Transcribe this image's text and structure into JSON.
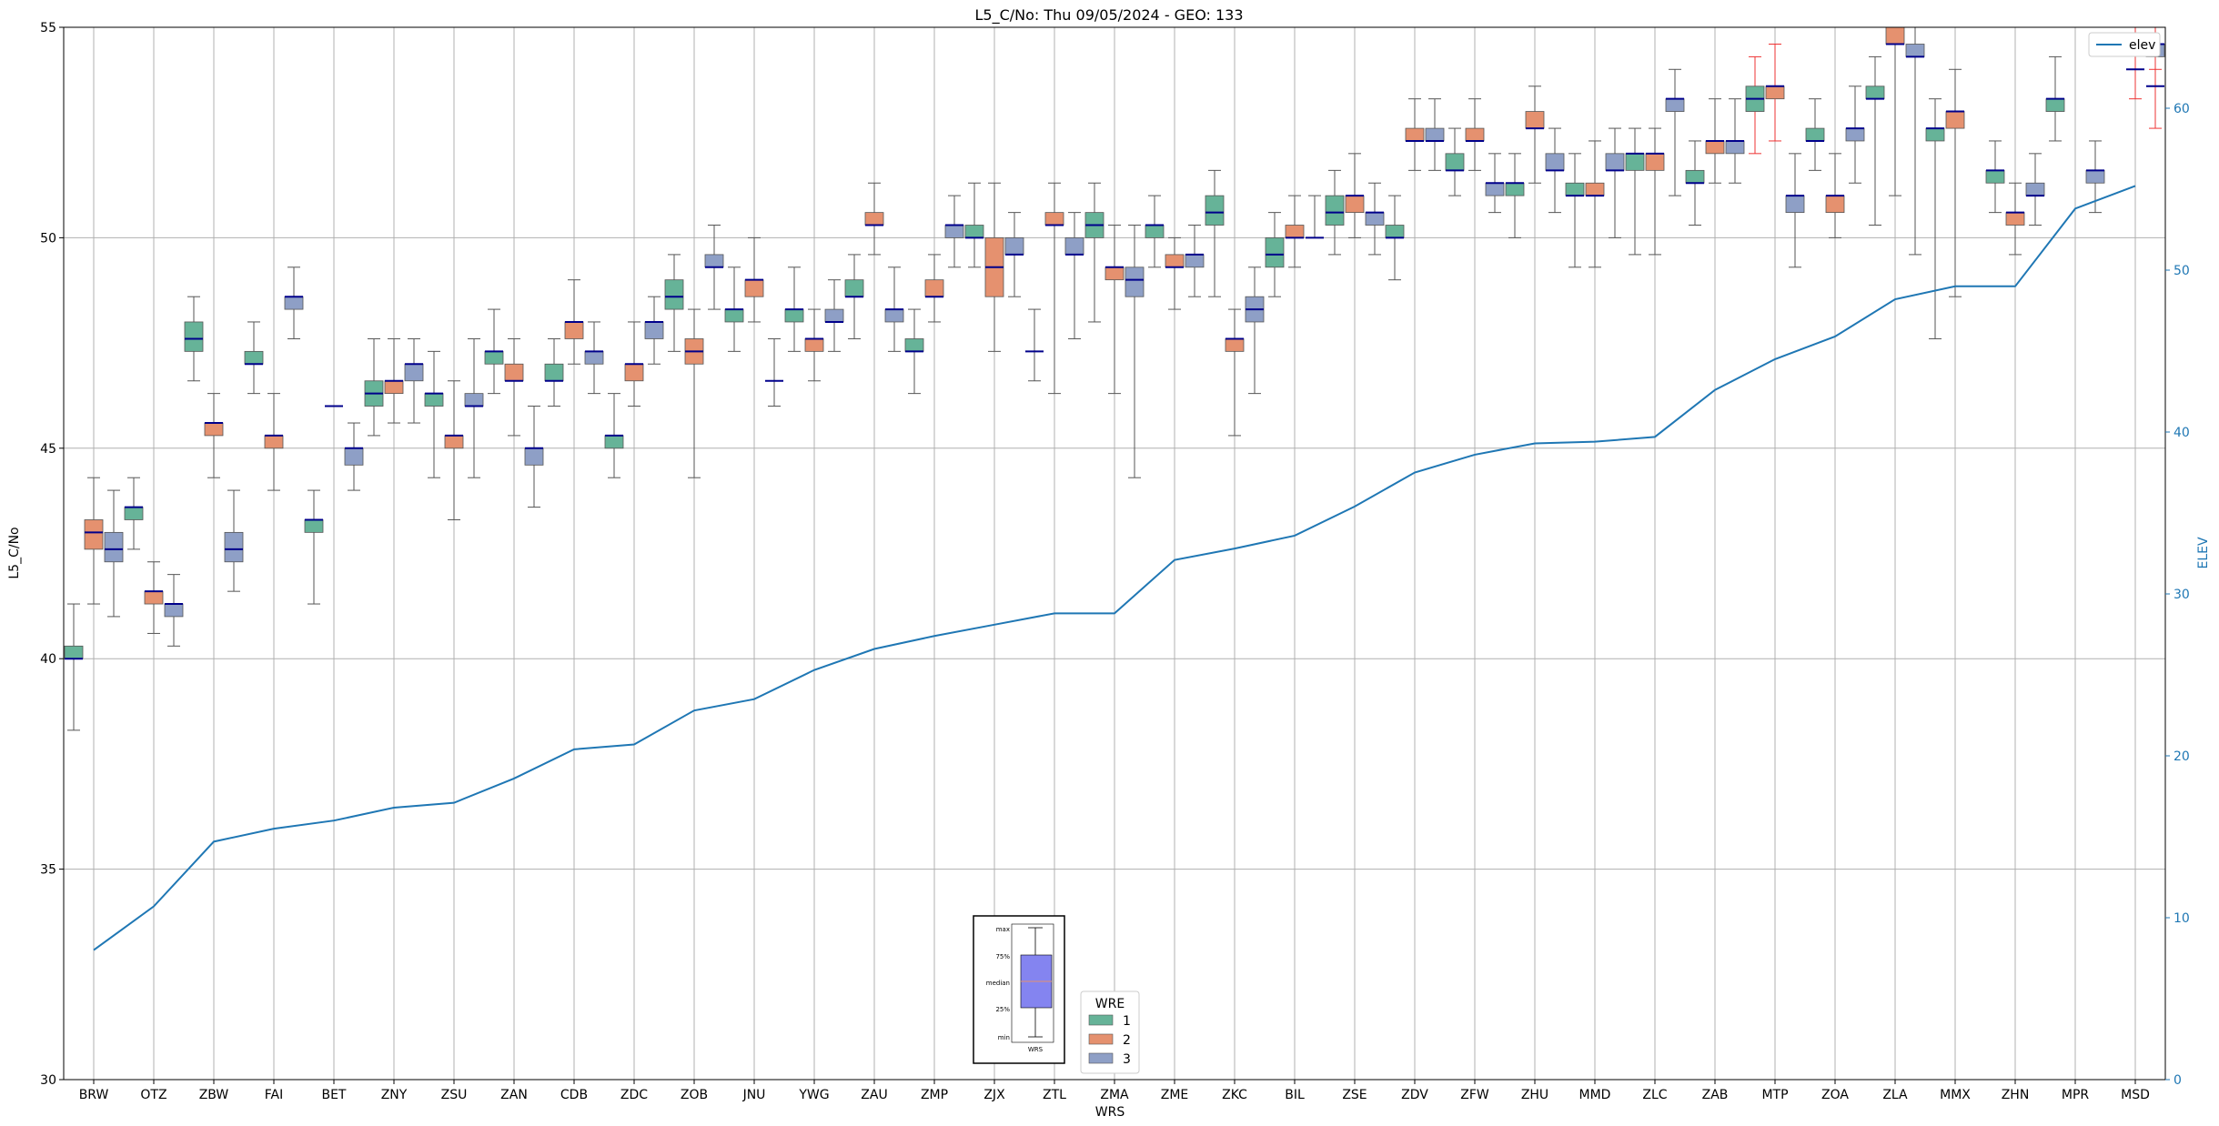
{
  "chart_data": {
    "type": "box",
    "title": "L5_C/No: Thu 09/05/2024 - GEO: 133",
    "xlabel": "WRS",
    "ylabel": "L5_C/No",
    "ylabel_right": "ELEV",
    "ylim": [
      30,
      55
    ],
    "ylim_right": [
      0,
      65
    ],
    "yticks": [
      30,
      35,
      40,
      45,
      50,
      55
    ],
    "yticks_right": [
      0,
      10,
      20,
      30,
      40,
      50,
      60
    ],
    "grid": true,
    "categories": [
      "BRW",
      "OTZ",
      "ZBW",
      "FAI",
      "BET",
      "ZNY",
      "ZSU",
      "ZAN",
      "CDB",
      "ZDC",
      "ZOB",
      "JNU",
      "YWG",
      "ZAU",
      "ZMP",
      "ZJX",
      "ZTL",
      "ZMA",
      "ZME",
      "ZKC",
      "BIL",
      "ZSE",
      "ZDV",
      "ZFW",
      "ZHU",
      "MMD",
      "ZLC",
      "ZAB",
      "MTP",
      "ZOA",
      "ZLA",
      "MMX",
      "ZHN",
      "MPR",
      "MSD"
    ],
    "legend": {
      "title": "WRE",
      "placement": "bottom-center",
      "entries": [
        {
          "name": "1",
          "color": "#66b398"
        },
        {
          "name": "2",
          "color": "#e5916f"
        },
        {
          "name": "3",
          "color": "#8e9fc6"
        }
      ]
    },
    "legend_right": {
      "placement": "top-right",
      "entries": [
        {
          "name": "elev",
          "color": "#1f77b4"
        }
      ]
    },
    "legend_key": {
      "labels": [
        "max",
        "75%",
        "median",
        "25%",
        "min"
      ],
      "xlabel": "WRS"
    },
    "boxes": [
      {
        "cat": "BRW",
        "wre": 1,
        "min": 38.3,
        "q1": 40.0,
        "median": 40.0,
        "q3": 40.3,
        "max": 41.3
      },
      {
        "cat": "BRW",
        "wre": 2,
        "min": 41.3,
        "q1": 42.6,
        "median": 43.0,
        "q3": 43.3,
        "max": 44.3
      },
      {
        "cat": "BRW",
        "wre": 3,
        "min": 41.0,
        "q1": 42.3,
        "median": 42.6,
        "q3": 43.0,
        "max": 44.0
      },
      {
        "cat": "OTZ",
        "wre": 1,
        "min": 42.6,
        "q1": 43.3,
        "median": 43.6,
        "q3": 43.6,
        "max": 44.3
      },
      {
        "cat": "OTZ",
        "wre": 2,
        "min": 40.6,
        "q1": 41.3,
        "median": 41.6,
        "q3": 41.6,
        "max": 42.3
      },
      {
        "cat": "OTZ",
        "wre": 3,
        "min": 40.3,
        "q1": 41.0,
        "median": 41.3,
        "q3": 41.3,
        "max": 42.0
      },
      {
        "cat": "ZBW",
        "wre": 1,
        "min": 46.6,
        "q1": 47.3,
        "median": 47.6,
        "q3": 48.0,
        "max": 48.6
      },
      {
        "cat": "ZBW",
        "wre": 2,
        "min": 44.3,
        "q1": 45.3,
        "median": 45.6,
        "q3": 45.6,
        "max": 46.3
      },
      {
        "cat": "ZBW",
        "wre": 3,
        "min": 41.6,
        "q1": 42.3,
        "median": 42.6,
        "q3": 43.0,
        "max": 44.0
      },
      {
        "cat": "FAI",
        "wre": 1,
        "min": 46.3,
        "q1": 47.0,
        "median": 47.0,
        "q3": 47.3,
        "max": 48.0
      },
      {
        "cat": "FAI",
        "wre": 2,
        "min": 44.0,
        "q1": 45.0,
        "median": 45.3,
        "q3": 45.3,
        "max": 46.3
      },
      {
        "cat": "FAI",
        "wre": 3,
        "min": 47.6,
        "q1": 48.3,
        "median": 48.6,
        "q3": 48.6,
        "max": 49.3
      },
      {
        "cat": "BET",
        "wre": 1,
        "min": 41.3,
        "q1": 43.0,
        "median": 43.3,
        "q3": 43.3,
        "max": 44.0
      },
      {
        "cat": "BET",
        "wre": 2,
        "min": 46.0,
        "q1": 46.0,
        "median": 46.0,
        "q3": 46.0,
        "max": 46.0
      },
      {
        "cat": "BET",
        "wre": 3,
        "min": 44.0,
        "q1": 44.6,
        "median": 45.0,
        "q3": 45.0,
        "max": 45.6
      },
      {
        "cat": "ZNY",
        "wre": 1,
        "min": 45.3,
        "q1": 46.0,
        "median": 46.3,
        "q3": 46.6,
        "max": 47.6
      },
      {
        "cat": "ZNY",
        "wre": 2,
        "min": 45.6,
        "q1": 46.3,
        "median": 46.6,
        "q3": 46.6,
        "max": 47.6
      },
      {
        "cat": "ZNY",
        "wre": 3,
        "min": 45.6,
        "q1": 46.6,
        "median": 47.0,
        "q3": 47.0,
        "max": 47.6
      },
      {
        "cat": "ZSU",
        "wre": 1,
        "min": 44.3,
        "q1": 46.0,
        "median": 46.3,
        "q3": 46.3,
        "max": 47.3
      },
      {
        "cat": "ZSU",
        "wre": 2,
        "min": 43.3,
        "q1": 45.0,
        "median": 45.3,
        "q3": 45.3,
        "max": 46.6
      },
      {
        "cat": "ZSU",
        "wre": 3,
        "min": 44.3,
        "q1": 46.0,
        "median": 46.0,
        "q3": 46.3,
        "max": 47.6
      },
      {
        "cat": "ZAN",
        "wre": 1,
        "min": 46.3,
        "q1": 47.0,
        "median": 47.3,
        "q3": 47.3,
        "max": 48.3
      },
      {
        "cat": "ZAN",
        "wre": 2,
        "min": 45.3,
        "q1": 46.6,
        "median": 46.6,
        "q3": 47.0,
        "max": 47.6
      },
      {
        "cat": "ZAN",
        "wre": 3,
        "min": 43.6,
        "q1": 44.6,
        "median": 45.0,
        "q3": 45.0,
        "max": 46.0
      },
      {
        "cat": "CDB",
        "wre": 1,
        "min": 46.0,
        "q1": 46.6,
        "median": 46.6,
        "q3": 47.0,
        "max": 47.6
      },
      {
        "cat": "CDB",
        "wre": 2,
        "min": 47.0,
        "q1": 47.6,
        "median": 48.0,
        "q3": 48.0,
        "max": 49.0
      },
      {
        "cat": "CDB",
        "wre": 3,
        "min": 46.3,
        "q1": 47.0,
        "median": 47.3,
        "q3": 47.3,
        "max": 48.0
      },
      {
        "cat": "ZDC",
        "wre": 1,
        "min": 44.3,
        "q1": 45.0,
        "median": 45.3,
        "q3": 45.3,
        "max": 46.3
      },
      {
        "cat": "ZDC",
        "wre": 2,
        "min": 46.0,
        "q1": 46.6,
        "median": 47.0,
        "q3": 47.0,
        "max": 48.0
      },
      {
        "cat": "ZDC",
        "wre": 3,
        "min": 47.0,
        "q1": 47.6,
        "median": 48.0,
        "q3": 48.0,
        "max": 48.6
      },
      {
        "cat": "ZOB",
        "wre": 1,
        "min": 47.3,
        "q1": 48.3,
        "median": 48.6,
        "q3": 49.0,
        "max": 49.6
      },
      {
        "cat": "ZOB",
        "wre": 2,
        "min": 44.3,
        "q1": 47.0,
        "median": 47.3,
        "q3": 47.6,
        "max": 48.3
      },
      {
        "cat": "ZOB",
        "wre": 3,
        "min": 48.3,
        "q1": 49.3,
        "median": 49.3,
        "q3": 49.6,
        "max": 50.3
      },
      {
        "cat": "JNU",
        "wre": 1,
        "min": 47.3,
        "q1": 48.0,
        "median": 48.3,
        "q3": 48.3,
        "max": 49.3
      },
      {
        "cat": "JNU",
        "wre": 2,
        "min": 48.0,
        "q1": 48.6,
        "median": 49.0,
        "q3": 49.0,
        "max": 50.0
      },
      {
        "cat": "JNU",
        "wre": 3,
        "min": 46.0,
        "q1": 46.6,
        "median": 46.6,
        "q3": 46.6,
        "max": 47.6
      },
      {
        "cat": "YWG",
        "wre": 1,
        "min": 47.3,
        "q1": 48.0,
        "median": 48.3,
        "q3": 48.3,
        "max": 49.3
      },
      {
        "cat": "YWG",
        "wre": 2,
        "min": 46.6,
        "q1": 47.3,
        "median": 47.6,
        "q3": 47.6,
        "max": 48.3
      },
      {
        "cat": "YWG",
        "wre": 3,
        "min": 47.3,
        "q1": 48.0,
        "median": 48.0,
        "q3": 48.3,
        "max": 49.0
      },
      {
        "cat": "ZAU",
        "wre": 1,
        "min": 47.6,
        "q1": 48.6,
        "median": 48.6,
        "q3": 49.0,
        "max": 49.6
      },
      {
        "cat": "ZAU",
        "wre": 2,
        "min": 49.6,
        "q1": 50.3,
        "median": 50.3,
        "q3": 50.6,
        "max": 51.3
      },
      {
        "cat": "ZAU",
        "wre": 3,
        "min": 47.3,
        "q1": 48.0,
        "median": 48.3,
        "q3": 48.3,
        "max": 49.3
      },
      {
        "cat": "ZMP",
        "wre": 1,
        "min": 46.3,
        "q1": 47.3,
        "median": 47.3,
        "q3": 47.6,
        "max": 48.3
      },
      {
        "cat": "ZMP",
        "wre": 2,
        "min": 48.0,
        "q1": 48.6,
        "median": 48.6,
        "q3": 49.0,
        "max": 49.6
      },
      {
        "cat": "ZMP",
        "wre": 3,
        "min": 49.3,
        "q1": 50.0,
        "median": 50.3,
        "q3": 50.3,
        "max": 51.0
      },
      {
        "cat": "ZJX",
        "wre": 1,
        "min": 49.3,
        "q1": 50.0,
        "median": 50.0,
        "q3": 50.3,
        "max": 51.3
      },
      {
        "cat": "ZJX",
        "wre": 2,
        "min": 47.3,
        "q1": 48.6,
        "median": 49.3,
        "q3": 50.0,
        "max": 51.3
      },
      {
        "cat": "ZJX",
        "wre": 3,
        "min": 48.6,
        "q1": 49.6,
        "median": 49.6,
        "q3": 50.0,
        "max": 50.6
      },
      {
        "cat": "ZTL",
        "wre": 1,
        "min": 46.6,
        "q1": 47.3,
        "median": 47.3,
        "q3": 47.3,
        "max": 48.3
      },
      {
        "cat": "ZTL",
        "wre": 2,
        "min": 46.3,
        "q1": 50.3,
        "median": 50.3,
        "q3": 50.6,
        "max": 51.3
      },
      {
        "cat": "ZTL",
        "wre": 3,
        "min": 47.6,
        "q1": 49.6,
        "median": 49.6,
        "q3": 50.0,
        "max": 50.6
      },
      {
        "cat": "ZMA",
        "wre": 1,
        "min": 48.0,
        "q1": 50.0,
        "median": 50.3,
        "q3": 50.6,
        "max": 51.3
      },
      {
        "cat": "ZMA",
        "wre": 2,
        "min": 46.3,
        "q1": 49.0,
        "median": 49.3,
        "q3": 49.3,
        "max": 50.3
      },
      {
        "cat": "ZMA",
        "wre": 3,
        "min": 44.3,
        "q1": 48.6,
        "median": 49.0,
        "q3": 49.3,
        "max": 50.3
      },
      {
        "cat": "ZME",
        "wre": 1,
        "min": 49.3,
        "q1": 50.0,
        "median": 50.3,
        "q3": 50.3,
        "max": 51.0
      },
      {
        "cat": "ZME",
        "wre": 2,
        "min": 48.3,
        "q1": 49.3,
        "median": 49.3,
        "q3": 49.6,
        "max": 50.0
      },
      {
        "cat": "ZME",
        "wre": 3,
        "min": 48.6,
        "q1": 49.3,
        "median": 49.6,
        "q3": 49.6,
        "max": 50.3
      },
      {
        "cat": "ZKC",
        "wre": 1,
        "min": 48.6,
        "q1": 50.3,
        "median": 50.6,
        "q3": 51.0,
        "max": 51.6
      },
      {
        "cat": "ZKC",
        "wre": 2,
        "min": 45.3,
        "q1": 47.3,
        "median": 47.6,
        "q3": 47.6,
        "max": 48.3
      },
      {
        "cat": "ZKC",
        "wre": 3,
        "min": 46.3,
        "q1": 48.0,
        "median": 48.3,
        "q3": 48.6,
        "max": 49.3
      },
      {
        "cat": "BIL",
        "wre": 1,
        "min": 48.6,
        "q1": 49.3,
        "median": 49.6,
        "q3": 50.0,
        "max": 50.6
      },
      {
        "cat": "BIL",
        "wre": 2,
        "min": 49.3,
        "q1": 50.0,
        "median": 50.0,
        "q3": 50.3,
        "max": 51.0
      },
      {
        "cat": "BIL",
        "wre": 3,
        "min": 50.0,
        "q1": 50.0,
        "median": 50.0,
        "q3": 50.0,
        "max": 51.0
      },
      {
        "cat": "ZSE",
        "wre": 1,
        "min": 49.6,
        "q1": 50.3,
        "median": 50.6,
        "q3": 51.0,
        "max": 51.6
      },
      {
        "cat": "ZSE",
        "wre": 2,
        "min": 50.0,
        "q1": 50.6,
        "median": 51.0,
        "q3": 51.0,
        "max": 52.0
      },
      {
        "cat": "ZSE",
        "wre": 3,
        "min": 49.6,
        "q1": 50.3,
        "median": 50.6,
        "q3": 50.6,
        "max": 51.3
      },
      {
        "cat": "ZDV",
        "wre": 1,
        "min": 49.0,
        "q1": 50.0,
        "median": 50.0,
        "q3": 50.3,
        "max": 51.0
      },
      {
        "cat": "ZDV",
        "wre": 2,
        "min": 51.6,
        "q1": 52.3,
        "median": 52.3,
        "q3": 52.6,
        "max": 53.3
      },
      {
        "cat": "ZDV",
        "wre": 3,
        "min": 51.6,
        "q1": 52.3,
        "median": 52.3,
        "q3": 52.6,
        "max": 53.3
      },
      {
        "cat": "ZFW",
        "wre": 1,
        "min": 51.0,
        "q1": 51.6,
        "median": 51.6,
        "q3": 52.0,
        "max": 52.6
      },
      {
        "cat": "ZFW",
        "wre": 2,
        "min": 51.6,
        "q1": 52.3,
        "median": 52.3,
        "q3": 52.6,
        "max": 53.3
      },
      {
        "cat": "ZFW",
        "wre": 3,
        "min": 50.6,
        "q1": 51.0,
        "median": 51.3,
        "q3": 51.3,
        "max": 52.0
      },
      {
        "cat": "ZHU",
        "wre": 1,
        "min": 50.0,
        "q1": 51.0,
        "median": 51.3,
        "q3": 51.3,
        "max": 52.0
      },
      {
        "cat": "ZHU",
        "wre": 2,
        "min": 51.3,
        "q1": 52.6,
        "median": 52.6,
        "q3": 53.0,
        "max": 53.6
      },
      {
        "cat": "ZHU",
        "wre": 3,
        "min": 50.6,
        "q1": 51.6,
        "median": 51.6,
        "q3": 52.0,
        "max": 52.6
      },
      {
        "cat": "MMD",
        "wre": 1,
        "min": 49.3,
        "q1": 51.0,
        "median": 51.0,
        "q3": 51.3,
        "max": 52.0
      },
      {
        "cat": "MMD",
        "wre": 2,
        "min": 49.3,
        "q1": 51.0,
        "median": 51.0,
        "q3": 51.3,
        "max": 52.3
      },
      {
        "cat": "MMD",
        "wre": 3,
        "min": 50.0,
        "q1": 51.6,
        "median": 51.6,
        "q3": 52.0,
        "max": 52.6
      },
      {
        "cat": "ZLC",
        "wre": 1,
        "min": 49.6,
        "q1": 51.6,
        "median": 52.0,
        "q3": 52.0,
        "max": 52.6
      },
      {
        "cat": "ZLC",
        "wre": 2,
        "min": 49.6,
        "q1": 51.6,
        "median": 52.0,
        "q3": 52.0,
        "max": 52.6
      },
      {
        "cat": "ZLC",
        "wre": 3,
        "min": 51.0,
        "q1": 53.0,
        "median": 53.3,
        "q3": 53.3,
        "max": 54.0
      },
      {
        "cat": "ZAB",
        "wre": 1,
        "min": 50.3,
        "q1": 51.3,
        "median": 51.3,
        "q3": 51.6,
        "max": 52.3
      },
      {
        "cat": "ZAB",
        "wre": 2,
        "min": 51.3,
        "q1": 52.0,
        "median": 52.3,
        "q3": 52.3,
        "max": 53.3
      },
      {
        "cat": "ZAB",
        "wre": 3,
        "min": 51.3,
        "q1": 52.0,
        "median": 52.3,
        "q3": 52.3,
        "max": 53.3
      },
      {
        "cat": "MTP",
        "wre": 1,
        "min": 52.0,
        "q1": 53.0,
        "median": 53.3,
        "q3": 53.6,
        "max": 54.3
      },
      {
        "cat": "MTP",
        "wre": 2,
        "min": 52.3,
        "q1": 53.3,
        "median": 53.6,
        "q3": 53.6,
        "max": 54.6
      },
      {
        "cat": "MTP",
        "wre": 3,
        "min": 49.3,
        "q1": 50.6,
        "median": 51.0,
        "q3": 51.0,
        "max": 52.0
      },
      {
        "cat": "ZOA",
        "wre": 1,
        "min": 51.6,
        "q1": 52.3,
        "median": 52.3,
        "q3": 52.6,
        "max": 53.3
      },
      {
        "cat": "ZOA",
        "wre": 2,
        "min": 50.0,
        "q1": 50.6,
        "median": 51.0,
        "q3": 51.0,
        "max": 52.0
      },
      {
        "cat": "ZOA",
        "wre": 3,
        "min": 51.3,
        "q1": 52.3,
        "median": 52.6,
        "q3": 52.6,
        "max": 53.6
      },
      {
        "cat": "ZLA",
        "wre": 1,
        "min": 50.3,
        "q1": 53.3,
        "median": 53.3,
        "q3": 53.6,
        "max": 54.3
      },
      {
        "cat": "ZLA",
        "wre": 2,
        "min": 51.0,
        "q1": 54.6,
        "median": 54.6,
        "q3": 55.0,
        "max": 55.0
      },
      {
        "cat": "ZLA",
        "wre": 3,
        "min": 49.6,
        "q1": 54.3,
        "median": 54.3,
        "q3": 54.6,
        "max": 55.0
      },
      {
        "cat": "MMX",
        "wre": 1,
        "min": 47.6,
        "q1": 52.3,
        "median": 52.6,
        "q3": 52.6,
        "max": 53.3
      },
      {
        "cat": "MMX",
        "wre": 2,
        "min": 48.6,
        "q1": 52.6,
        "median": 53.0,
        "q3": 53.0,
        "max": 54.0
      },
      {
        "cat": "ZHN",
        "wre": 1,
        "min": 50.6,
        "q1": 51.3,
        "median": 51.6,
        "q3": 51.6,
        "max": 52.3
      },
      {
        "cat": "ZHN",
        "wre": 2,
        "min": 49.6,
        "q1": 50.3,
        "median": 50.6,
        "q3": 50.6,
        "max": 51.3
      },
      {
        "cat": "ZHN",
        "wre": 3,
        "min": 50.3,
        "q1": 51.0,
        "median": 51.0,
        "q3": 51.3,
        "max": 52.0
      },
      {
        "cat": "MPR",
        "wre": 1,
        "min": 52.3,
        "q1": 53.0,
        "median": 53.3,
        "q3": 53.3,
        "max": 54.3
      },
      {
        "cat": "MPR",
        "wre": 3,
        "min": 50.6,
        "q1": 51.3,
        "median": 51.6,
        "q3": 51.6,
        "max": 52.3
      },
      {
        "cat": "MSD",
        "wre": 2,
        "min": 53.3,
        "q1": 54.0,
        "median": 54.0,
        "q3": 54.0,
        "max": 55.0
      },
      {
        "cat": "MSD",
        "wre": 3,
        "min": 52.6,
        "q1": 53.6,
        "median": 53.6,
        "q3": 53.6,
        "max": 55.0
      },
      {
        "cat": "MSD",
        "wre": 3,
        "min": 54.0,
        "q1": 54.3,
        "median": 54.6,
        "q3": 54.6,
        "max": 55.0
      }
    ],
    "elev": {
      "name": "elev",
      "axis": "right",
      "values": [
        8.0,
        10.7,
        14.7,
        15.5,
        16.0,
        16.8,
        17.1,
        18.6,
        20.4,
        20.7,
        22.8,
        23.5,
        25.3,
        26.6,
        27.4,
        28.1,
        28.8,
        28.8,
        32.1,
        32.8,
        33.6,
        35.4,
        37.5,
        38.6,
        39.3,
        39.4,
        39.7,
        42.6,
        44.5,
        45.9,
        48.2,
        49.0,
        49.0,
        53.8,
        55.2
      ]
    }
  }
}
